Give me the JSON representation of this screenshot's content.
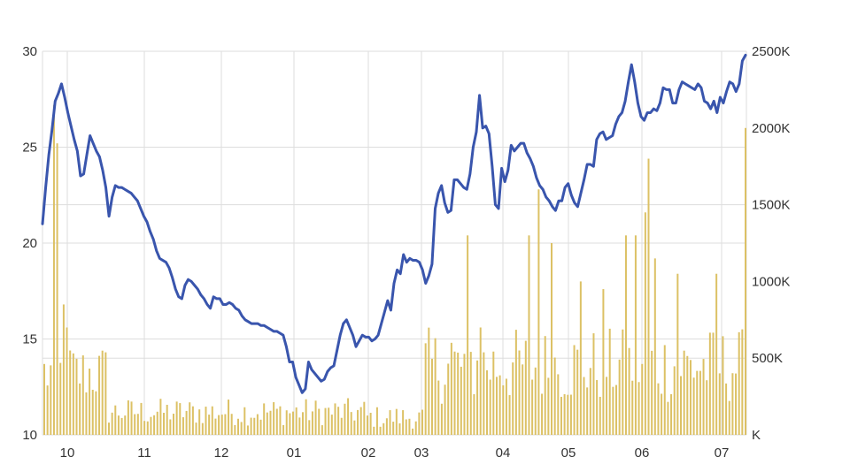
{
  "chart_data": {
    "type": "line+bar",
    "title": "",
    "xlabel": "",
    "x_tick_labels": [
      "10",
      "11",
      "12",
      "01",
      "02",
      "03",
      "04",
      "05",
      "06",
      "07"
    ],
    "price_axis": {
      "ticks": [
        10,
        15,
        20,
        25,
        30
      ],
      "ylim": [
        10,
        30
      ]
    },
    "volume_axis": {
      "ticks": [
        "K",
        "500K",
        "1000K",
        "1500K",
        "2000K",
        "2500K"
      ],
      "ylim": [
        0,
        2500
      ]
    },
    "colors": {
      "price_line": "#3955ad",
      "volume_bar": "#dcc165",
      "grid": "#dddddd",
      "text": "#333333"
    },
    "series": [
      {
        "type": "line",
        "axis": "left",
        "x_range": [
          0,
          189
        ],
        "values": [
          21,
          22.9,
          24.6,
          25.9,
          27.4,
          27.8,
          28.3,
          28.1,
          27.6,
          27.2,
          26.6,
          26.1,
          25.5,
          25.2,
          24.6,
          24.1,
          23.5,
          23.5,
          23.6,
          24.4,
          25.3,
          25.6,
          25.2,
          24.8,
          24.5,
          24.4,
          24.1,
          23.6,
          23.3,
          23,
          22.6,
          22.3,
          21.9,
          21.4,
          21.1,
          21,
          21,
          21.5,
          21.8,
          22.2,
          22.6,
          22.9,
          22.9,
          22.9,
          22.8,
          22.7,
          22.6,
          22.7,
          22.5,
          22.4,
          22.3,
          22.2,
          22,
          21.8,
          21.6,
          21.4,
          21.2,
          21,
          20.8,
          20.6,
          20.4,
          20.2,
          20,
          19.8,
          19.7,
          19.6,
          19.5,
          19.3,
          19.1,
          19,
          19,
          19.1,
          19,
          18.9,
          18.9,
          18.8,
          18.7,
          18.6,
          18.4,
          18.1,
          17.9,
          17.6,
          17.3,
          17.2,
          17.1,
          17.1,
          17.3,
          17.6,
          17.8,
          18,
          18.1,
          18.1,
          18,
          18,
          17.9,
          17.8,
          17.8,
          17.7,
          17.6,
          17.5,
          17.4,
          17.3,
          17.2,
          17.1,
          16.9,
          16.8,
          16.9,
          16.7,
          16.6,
          16.6,
          16.7,
          16.8,
          17,
          17.2,
          17.2,
          17.1,
          17,
          17,
          16.9,
          16.8,
          16.8,
          16.9,
          16.8,
          16.7,
          16.6,
          16.6,
          16.7,
          16.7,
          16.8,
          16.8,
          16.7,
          16.7,
          16.7,
          16.6,
          16.6,
          16.5,
          16.3,
          16.2,
          16.1,
          16,
          16,
          15.9,
          15.8,
          15.8,
          15.7,
          15.7,
          15.8,
          15.8,
          15.7,
          15.7,
          15.7,
          15.7,
          15.7,
          15.8,
          15.7,
          15.7,
          15.7,
          15.6,
          15.5,
          15.5,
          15.4,
          15.4,
          15.3,
          15.3,
          15.3,
          15.3,
          15.3,
          15.2,
          15.1,
          15,
          14.8,
          14.5,
          14.1,
          13.8,
          13.8,
          13.7,
          13.6,
          13.3,
          13,
          12.7,
          12.5,
          12.3,
          12.2,
          12.3,
          12.4,
          12.6,
          13.1
        ],
        "spline_extension_note": ""
      },
      {
        "type": "bar",
        "axis": "right",
        "values": []
      }
    ],
    "legend": "none",
    "grid": true
  }
}
